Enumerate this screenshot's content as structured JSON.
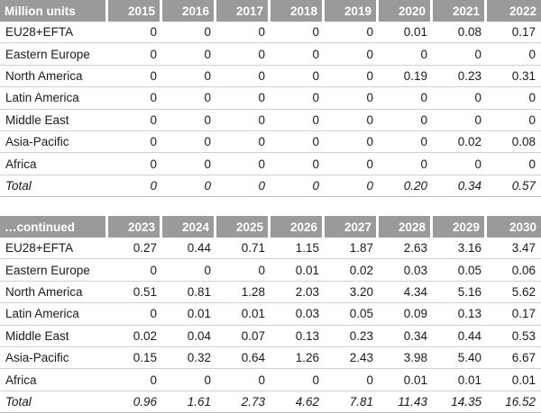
{
  "table1": {
    "header_label": "Million units",
    "years": [
      "2015",
      "2016",
      "2017",
      "2018",
      "2019",
      "2020",
      "2021",
      "2022"
    ],
    "rows": [
      {
        "label": "EU28+EFTA",
        "values": [
          "0",
          "0",
          "0",
          "0",
          "0",
          "0.01",
          "0.08",
          "0.17"
        ]
      },
      {
        "label": "Eastern Europe",
        "values": [
          "0",
          "0",
          "0",
          "0",
          "0",
          "0",
          "0",
          "0"
        ]
      },
      {
        "label": "North America",
        "values": [
          "0",
          "0",
          "0",
          "0",
          "0",
          "0.19",
          "0.23",
          "0.31"
        ]
      },
      {
        "label": "Latin America",
        "values": [
          "0",
          "0",
          "0",
          "0",
          "0",
          "0",
          "0",
          "0"
        ]
      },
      {
        "label": "Middle East",
        "values": [
          "0",
          "0",
          "0",
          "0",
          "0",
          "0",
          "0",
          "0"
        ]
      },
      {
        "label": "Asia-Pacific",
        "values": [
          "0",
          "0",
          "0",
          "0",
          "0",
          "0",
          "0.02",
          "0.08"
        ]
      },
      {
        "label": "Africa",
        "values": [
          "0",
          "0",
          "0",
          "0",
          "0",
          "0",
          "0",
          "0"
        ]
      },
      {
        "label": "Total",
        "values": [
          "0",
          "0",
          "0",
          "0",
          "0",
          "0.20",
          "0.34",
          "0.57"
        ]
      }
    ]
  },
  "table2": {
    "header_label": "…continued",
    "years": [
      "2023",
      "2024",
      "2025",
      "2026",
      "2027",
      "2028",
      "2029",
      "2030"
    ],
    "rows": [
      {
        "label": "EU28+EFTA",
        "values": [
          "0.27",
          "0.44",
          "0.71",
          "1.15",
          "1.87",
          "2.63",
          "3.16",
          "3.47"
        ]
      },
      {
        "label": "Eastern Europe",
        "values": [
          "0",
          "0",
          "0",
          "0.01",
          "0.02",
          "0.03",
          "0.05",
          "0.06"
        ]
      },
      {
        "label": "North America",
        "values": [
          "0.51",
          "0.81",
          "1.28",
          "2.03",
          "3.20",
          "4.34",
          "5.16",
          "5.62"
        ]
      },
      {
        "label": "Latin America",
        "values": [
          "0",
          "0.01",
          "0.01",
          "0.03",
          "0.05",
          "0.09",
          "0.13",
          "0.17"
        ]
      },
      {
        "label": "Middle East",
        "values": [
          "0.02",
          "0.04",
          "0.07",
          "0.13",
          "0.23",
          "0.34",
          "0.44",
          "0.53"
        ]
      },
      {
        "label": "Asia-Pacific",
        "values": [
          "0.15",
          "0.32",
          "0.64",
          "1.26",
          "2.43",
          "3.98",
          "5.40",
          "6.67"
        ]
      },
      {
        "label": "Africa",
        "values": [
          "0",
          "0",
          "0",
          "0",
          "0",
          "0.01",
          "0.01",
          "0.01"
        ]
      },
      {
        "label": "Total",
        "values": [
          "0.96",
          "1.61",
          "2.73",
          "4.62",
          "7.81",
          "11.43",
          "14.35",
          "16.52"
        ]
      }
    ]
  },
  "colors": {
    "header_bg": "#9a9a9a",
    "header_text": "#ffffff",
    "rule": "#d0d0d0"
  }
}
